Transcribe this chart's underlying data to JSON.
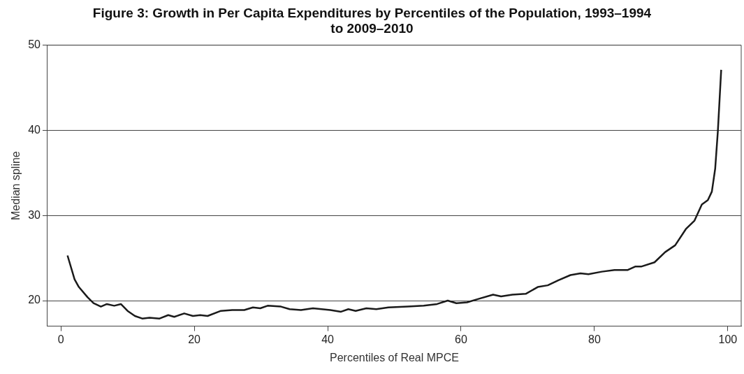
{
  "chart_data": {
    "type": "line",
    "title": "Figure 3: Growth in Per Capita Expenditures by Percentiles of the Population, 1993–1994 to 2009–2010",
    "xlabel": "Percentiles of Real MPCE",
    "ylabel": "Median spline",
    "x": [
      1.0,
      2.06,
      2.7,
      4.0,
      4.9,
      6.0,
      6.9,
      8.0,
      9.0,
      10.0,
      11.1,
      12.2,
      13.3,
      14.8,
      16.1,
      17.0,
      18.5,
      19.8,
      20.9,
      22.0,
      24.0,
      25.7,
      27.5,
      28.8,
      29.9,
      31.0,
      33.0,
      34.3,
      36.0,
      37.8,
      40.4,
      42.0,
      43.1,
      44.2,
      45.8,
      47.3,
      49.1,
      52.0,
      54.4,
      56.4,
      58.0,
      59.3,
      60.9,
      62.6,
      64.8,
      66.0,
      67.7,
      69.7,
      71.5,
      73.0,
      74.6,
      76.4,
      77.9,
      79.1,
      81.1,
      83.0,
      85.0,
      86.1,
      87.0,
      89.0,
      90.6,
      92.1,
      93.7,
      95.0,
      96.1,
      97.0,
      97.6,
      98.1,
      98.5,
      99.0
    ],
    "series": [
      {
        "color": "#1a1a1a",
        "values": [
          25.3,
          22.5,
          21.6,
          20.4,
          19.7,
          19.3,
          19.6,
          19.4,
          19.6,
          18.8,
          18.2,
          17.9,
          18.0,
          17.9,
          18.3,
          18.1,
          18.5,
          18.2,
          18.3,
          18.2,
          18.8,
          18.9,
          18.9,
          19.2,
          19.1,
          19.4,
          19.3,
          19.0,
          18.9,
          19.1,
          18.9,
          18.7,
          19.0,
          18.8,
          19.1,
          19.0,
          19.2,
          19.3,
          19.4,
          19.6,
          20.0,
          19.7,
          19.8,
          20.2,
          20.7,
          20.5,
          20.7,
          20.8,
          21.6,
          21.8,
          22.4,
          23.0,
          23.2,
          23.1,
          23.4,
          23.6,
          23.6,
          24.0,
          24.0,
          24.5,
          25.7,
          26.5,
          28.4,
          29.4,
          31.3,
          31.8,
          32.8,
          35.5,
          39.9,
          47.1
        ]
      }
    ],
    "xlim": [
      -2,
      102
    ],
    "xticks": [
      0,
      20,
      40,
      60,
      80,
      100
    ],
    "ylim": [
      17,
      50
    ],
    "yticks": [
      20,
      30,
      40,
      50
    ],
    "grid": "y",
    "marker": "none",
    "line_style": "solid"
  }
}
